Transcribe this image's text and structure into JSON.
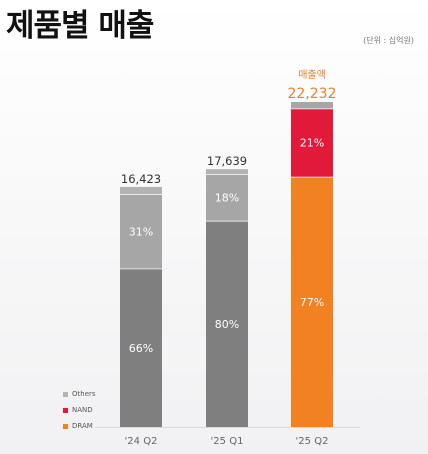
{
  "page": {
    "title": "제품별 매출",
    "unit_note": "(단위 : 십억원)"
  },
  "colors": {
    "others": "#b3b3b3",
    "nand": "#e3193a",
    "dram": "#f28122",
    "top_segment_grey": "#a6a6a6",
    "bottom_segment_grey": "#7f7f7f",
    "highlight_text": "#f07f2b"
  },
  "chart_data": {
    "type": "bar",
    "stacked": true,
    "categories": [
      "'24 Q2",
      "'25 Q1",
      "'25 Q2"
    ],
    "totals": [
      16423,
      17639,
      22232
    ],
    "total_labels": [
      "16,423",
      "17,639",
      "22,232"
    ],
    "highlight_caption": "매출액",
    "highlight_index": 2,
    "segments": [
      {
        "values": [
          66,
          80,
          77
        ],
        "labels": [
          "66%",
          "80%",
          "77%"
        ]
      },
      {
        "values": [
          31,
          18,
          21
        ],
        "labels": [
          "31%",
          "18%",
          "21%"
        ]
      },
      {
        "values": [
          3,
          2,
          2
        ],
        "labels": [
          "",
          "",
          ""
        ]
      }
    ],
    "legend": [
      "Others",
      "NAND",
      "DRAM"
    ],
    "legend_position": "bottom-left"
  }
}
